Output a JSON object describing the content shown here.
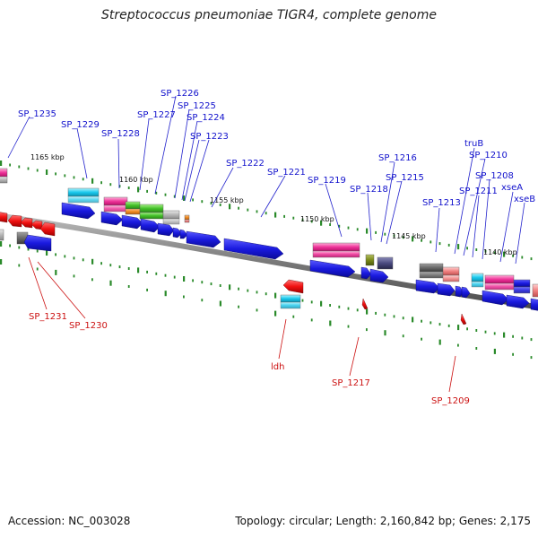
{
  "title": "Streptococcus pneumoniae TIGR4, complete genome",
  "footer": {
    "accession": "Accession: NC_003028",
    "topology": "Topology: circular; Length: 2,160,842 bp; Genes: 2,175"
  },
  "colors": {
    "backbone": "#7a7a7a",
    "cds": "#1a1adf",
    "rna_gene": "#ff1111",
    "plus_label": "#1111cc",
    "minus_label": "#cc1111",
    "tick": "#2a8a2a"
  },
  "tick_labels": [
    "1165 kbp",
    "1160 kbp",
    "1155 kbp",
    "1150 kbp",
    "1145 kbp",
    "1140 kbp"
  ],
  "plus_labels": [
    "SP_1235",
    "SP_1229",
    "SP_1228",
    "SP_1227",
    "SP_1226",
    "SP_1225",
    "SP_1224",
    "SP_1223",
    "SP_1222",
    "SP_1221",
    "SP_1219",
    "SP_1218",
    "SP_1216",
    "SP_1215",
    "SP_1213",
    "truB",
    "SP_1210",
    "SP_1211",
    "SP_1208",
    "xseA",
    "xseB"
  ],
  "minus_labels": [
    "SP_1231",
    "SP_1230",
    "ldh",
    "SP_1217",
    "SP_1209"
  ]
}
